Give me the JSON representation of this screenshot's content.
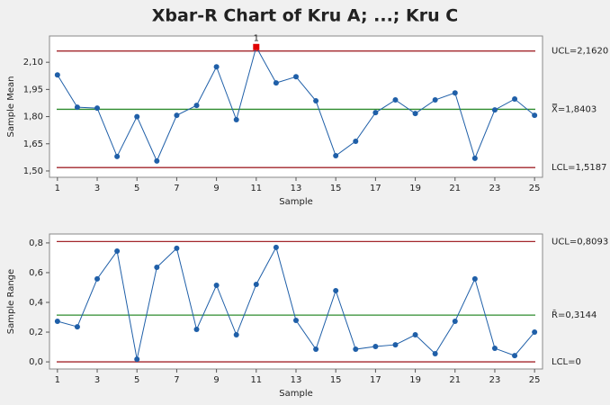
{
  "title": "Xbar-R Chart of Kru A; ...; Kru C",
  "chart_data": [
    {
      "type": "line",
      "xlabel": "Sample",
      "ylabel": "Sample Mean",
      "x": [
        1,
        2,
        3,
        4,
        5,
        6,
        7,
        8,
        9,
        10,
        11,
        12,
        13,
        14,
        15,
        16,
        17,
        18,
        19,
        20,
        21,
        22,
        23,
        24,
        25
      ],
      "series": [
        {
          "color": "#1f5fa8",
          "values": [
            2.03,
            1.852,
            1.847,
            1.58,
            1.8,
            1.555,
            1.807,
            1.862,
            2.075,
            1.783,
            2.184,
            1.986,
            2.02,
            1.887,
            1.584,
            1.664,
            1.822,
            1.892,
            1.817,
            1.892,
            1.931,
            1.57,
            1.837,
            1.897,
            1.807
          ]
        }
      ],
      "xlim": [
        0.6,
        25.4
      ],
      "xticks": [
        1,
        3,
        5,
        7,
        9,
        11,
        13,
        15,
        17,
        19,
        21,
        23,
        25
      ],
      "ylim": [
        1.465,
        2.245
      ],
      "yticks": [
        {
          "value": 1.5,
          "label": "1,50"
        },
        {
          "value": 1.65,
          "label": "1,65"
        },
        {
          "value": 1.8,
          "label": "1,80"
        },
        {
          "value": 1.95,
          "label": "1,95"
        },
        {
          "value": 2.1,
          "label": "2,10"
        }
      ],
      "control_lines": [
        {
          "label": "UCL=2,1620",
          "value": 2.162,
          "color": "#a3262c"
        },
        {
          "label": "X̿=1,8403",
          "value": 1.8403,
          "color": "#2e8b2e"
        },
        {
          "label": "LCL=1,5187",
          "value": 1.5187,
          "color": "#a3262c"
        }
      ],
      "flagged": [
        {
          "x": 11,
          "label": "1",
          "color": "#e00000"
        }
      ]
    },
    {
      "type": "line",
      "xlabel": "Sample",
      "ylabel": "Sample Range",
      "x": [
        1,
        2,
        3,
        4,
        5,
        6,
        7,
        8,
        9,
        10,
        11,
        12,
        13,
        14,
        15,
        16,
        17,
        18,
        19,
        20,
        21,
        22,
        23,
        24,
        25
      ],
      "series": [
        {
          "color": "#1f5fa8",
          "values": [
            0.273,
            0.236,
            0.558,
            0.745,
            0.018,
            0.636,
            0.764,
            0.218,
            0.515,
            0.182,
            0.521,
            0.77,
            0.279,
            0.085,
            0.479,
            0.085,
            0.103,
            0.115,
            0.182,
            0.055,
            0.273,
            0.558,
            0.091,
            0.042,
            0.2
          ]
        }
      ],
      "xlim": [
        0.6,
        25.4
      ],
      "xticks": [
        1,
        3,
        5,
        7,
        9,
        11,
        13,
        15,
        17,
        19,
        21,
        23,
        25
      ],
      "ylim": [
        -0.048,
        0.86
      ],
      "yticks": [
        {
          "value": 0,
          "label": "0,0"
        },
        {
          "value": 0.2,
          "label": "0,2"
        },
        {
          "value": 0.4,
          "label": "0,4"
        },
        {
          "value": 0.6,
          "label": "0,6"
        },
        {
          "value": 0.8,
          "label": "0,8"
        }
      ],
      "control_lines": [
        {
          "label": "UCL=0,8093",
          "value": 0.8093,
          "color": "#a3262c"
        },
        {
          "label": "R̄=0,3144",
          "value": 0.3144,
          "color": "#2e8b2e"
        },
        {
          "label": "LCL=0",
          "value": 0,
          "color": "#a3262c"
        }
      ]
    }
  ]
}
